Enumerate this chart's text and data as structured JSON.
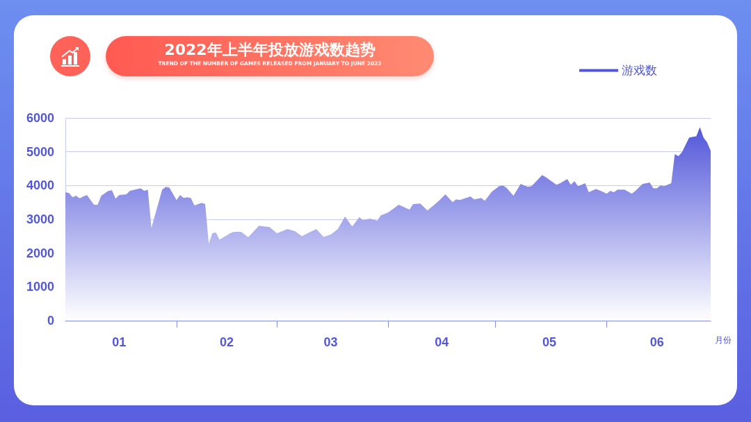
{
  "chart_data": {
    "type": "area",
    "title": "2022年上半年投放游戏数趋势",
    "subtitle": "TREND OF THE NUMBER OF GAMES RELEASED FROM JANUARY TO JUNE 2022",
    "xlabel": "月份",
    "x": [
      "2022-01-01",
      "2022-01-02",
      "2022-01-03",
      "2022-01-04",
      "2022-01-05",
      "2022-01-06",
      "2022-01-07",
      "2022-01-09",
      "2022-01-10",
      "2022-01-11",
      "2022-01-13",
      "2022-01-14",
      "2022-01-15",
      "2022-01-16",
      "2022-01-18",
      "2022-01-19",
      "2022-01-22",
      "2022-01-23",
      "2022-01-24",
      "2022-01-25",
      "2022-01-28",
      "2022-01-29",
      "2022-01-30",
      "2022-02-01",
      "2022-02-02",
      "2022-02-03",
      "2022-02-04",
      "2022-02-05",
      "2022-02-06",
      "2022-02-08",
      "2022-02-09",
      "2022-02-10",
      "2022-02-11",
      "2022-02-12",
      "2022-02-13",
      "2022-02-16",
      "2022-02-17",
      "2022-02-19",
      "2022-02-21",
      "2022-02-24",
      "2022-02-27",
      "2022-03-01",
      "2022-03-03",
      "2022-03-04",
      "2022-03-06",
      "2022-03-08",
      "2022-03-10",
      "2022-03-12",
      "2022-03-14",
      "2022-03-16",
      "2022-03-18",
      "2022-03-20",
      "2022-03-22",
      "2022-03-24",
      "2022-03-25",
      "2022-03-27",
      "2022-03-29",
      "2022-03-30",
      "2022-04-01",
      "2022-04-04",
      "2022-04-07",
      "2022-04-08",
      "2022-04-10",
      "2022-04-12",
      "2022-04-15",
      "2022-04-17",
      "2022-04-19",
      "2022-04-20",
      "2022-04-21",
      "2022-04-24",
      "2022-04-25",
      "2022-04-27",
      "2022-04-28",
      "2022-04-30",
      "2022-05-02",
      "2022-05-03",
      "2022-05-04",
      "2022-05-06",
      "2022-05-08",
      "2022-05-10",
      "2022-05-11",
      "2022-05-12",
      "2022-05-14",
      "2022-05-15",
      "2022-05-18",
      "2022-05-19",
      "2022-05-21",
      "2022-05-22",
      "2022-05-23",
      "2022-05-24",
      "2022-05-26",
      "2022-05-27",
      "2022-05-29",
      "2022-05-30",
      "2022-06-01",
      "2022-06-02",
      "2022-06-03",
      "2022-06-04",
      "2022-06-06",
      "2022-06-08",
      "2022-06-09",
      "2022-06-11",
      "2022-06-13",
      "2022-06-14",
      "2022-06-15",
      "2022-06-16",
      "2022-06-17",
      "2022-06-19",
      "2022-06-20",
      "2022-06-21",
      "2022-06-22",
      "2022-06-24",
      "2022-06-26",
      "2022-06-27",
      "2022-06-28",
      "2022-06-29",
      "2022-06-30"
    ],
    "series": [
      {
        "name": "游戏数",
        "color": "#5257d9",
        "values": [
          3800,
          3780,
          3650,
          3700,
          3620,
          3680,
          3720,
          3430,
          3430,
          3700,
          3840,
          3860,
          3610,
          3720,
          3740,
          3840,
          3920,
          3840,
          3880,
          2750,
          3880,
          3960,
          3940,
          3570,
          3720,
          3630,
          3650,
          3630,
          3410,
          3490,
          3450,
          2280,
          2590,
          2610,
          2400,
          2590,
          2630,
          2630,
          2470,
          2810,
          2770,
          2590,
          2670,
          2710,
          2650,
          2500,
          2610,
          2710,
          2480,
          2550,
          2710,
          3080,
          2790,
          3060,
          2980,
          3020,
          2960,
          3120,
          3200,
          3430,
          3290,
          3450,
          3470,
          3260,
          3530,
          3740,
          3510,
          3590,
          3570,
          3680,
          3590,
          3630,
          3550,
          3820,
          3980,
          4000,
          3940,
          3700,
          4050,
          3960,
          3980,
          4090,
          4310,
          4250,
          4020,
          4070,
          4190,
          4020,
          4130,
          3980,
          4070,
          3800,
          3900,
          3860,
          3760,
          3840,
          3800,
          3880,
          3880,
          3760,
          3840,
          4050,
          4090,
          3920,
          3920,
          4000,
          3980,
          4070,
          4930,
          4870,
          4990,
          5420,
          5460,
          5730,
          5420,
          5280,
          5030
        ]
      }
    ],
    "xlim": [
      "2022-01-01",
      "2022-06-30"
    ],
    "xticks": [
      {
        "value": "2022-02-01",
        "label": null
      },
      {
        "value": "2022-03-01",
        "label": null
      },
      {
        "value": "2022-04-01",
        "label": null
      },
      {
        "value": "2022-05-01",
        "label": null
      },
      {
        "value": "2022-06-01",
        "label": null
      },
      {
        "value": "2022-01-16",
        "label": "01"
      },
      {
        "value": "2022-02-15",
        "label": "02"
      },
      {
        "value": "2022-03-16",
        "label": "03"
      },
      {
        "value": "2022-04-16",
        "label": "04"
      },
      {
        "value": "2022-05-16",
        "label": "05"
      },
      {
        "value": "2022-06-15",
        "label": "06"
      }
    ],
    "ylim": [
      0,
      6000
    ],
    "yticks": [
      0,
      1000,
      2000,
      3000,
      4000,
      5000,
      6000
    ],
    "grid": "y",
    "legend": "top right",
    "marker": "none"
  }
}
